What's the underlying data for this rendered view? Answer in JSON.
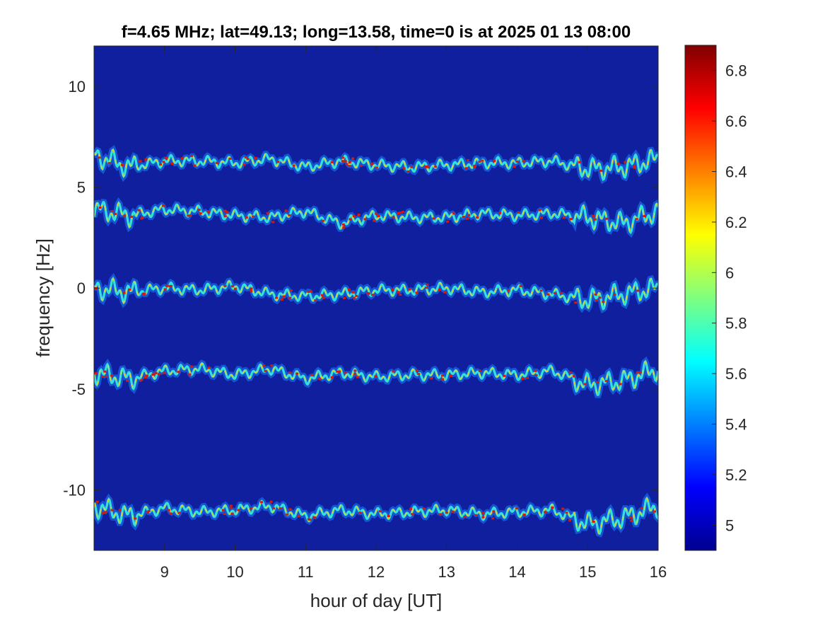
{
  "chart_data": {
    "type": "heatmap",
    "title": "f=4.65 MHz;  lat=49.13; long=13.58, time=0 is at 2025 01 13 08:00",
    "xlabel": "hour of day [UT]",
    "ylabel": "frequency [Hz]",
    "xlim": [
      8,
      16
    ],
    "ylim": [
      -13,
      12
    ],
    "x_ticks": [
      9,
      10,
      11,
      12,
      13,
      14,
      15,
      16
    ],
    "x_tick_labels": [
      "9",
      "10",
      "11",
      "12",
      "13",
      "14",
      "15",
      "16"
    ],
    "y_ticks": [
      10,
      5,
      0,
      -5,
      -10
    ],
    "y_tick_labels": [
      "10",
      "5",
      "0",
      "-5",
      "-10"
    ],
    "background_value": 4.9,
    "colormap": "jet",
    "colorbar": {
      "range": [
        4.9,
        6.9
      ],
      "ticks": [
        6.8,
        6.6,
        6.4,
        6.2,
        6,
        5.8,
        5.6,
        5.4,
        5.2,
        5
      ],
      "tick_labels": [
        "6.8",
        "6.6",
        "6.4",
        "6.2",
        "6",
        "5.8",
        "5.6",
        "5.4",
        "5.2",
        "5"
      ]
    },
    "series": [
      {
        "center_hz": 6.2,
        "points": [
          [
            8.0,
            6.6
          ],
          [
            8.5,
            6.0
          ],
          [
            9.0,
            6.3
          ],
          [
            9.5,
            6.3
          ],
          [
            10.0,
            6.2
          ],
          [
            10.5,
            6.4
          ],
          [
            11.0,
            6.0
          ],
          [
            11.5,
            6.3
          ],
          [
            12.0,
            6.1
          ],
          [
            12.5,
            6.0
          ],
          [
            13.0,
            6.1
          ],
          [
            13.5,
            6.2
          ],
          [
            14.0,
            6.2
          ],
          [
            14.5,
            6.3
          ],
          [
            15.0,
            5.9
          ],
          [
            15.5,
            6.0
          ],
          [
            16.0,
            6.4
          ]
        ]
      },
      {
        "center_hz": 3.8,
        "points": [
          [
            8.0,
            3.9
          ],
          [
            8.5,
            3.6
          ],
          [
            9.0,
            3.9
          ],
          [
            9.5,
            3.8
          ],
          [
            10.0,
            3.6
          ],
          [
            10.5,
            3.5
          ],
          [
            11.0,
            3.8
          ],
          [
            11.5,
            3.2
          ],
          [
            12.0,
            3.6
          ],
          [
            12.5,
            3.5
          ],
          [
            13.0,
            3.5
          ],
          [
            13.5,
            3.7
          ],
          [
            14.0,
            3.6
          ],
          [
            14.5,
            3.7
          ],
          [
            15.0,
            3.5
          ],
          [
            15.5,
            3.2
          ],
          [
            16.0,
            3.8
          ]
        ]
      },
      {
        "center_hz": -0.1,
        "points": [
          [
            8.0,
            0.0
          ],
          [
            8.5,
            -0.2
          ],
          [
            9.0,
            0.0
          ],
          [
            9.5,
            -0.1
          ],
          [
            10.0,
            0.1
          ],
          [
            10.5,
            -0.3
          ],
          [
            11.0,
            -0.4
          ],
          [
            11.5,
            -0.3
          ],
          [
            12.0,
            -0.1
          ],
          [
            12.5,
            -0.1
          ],
          [
            13.0,
            0.0
          ],
          [
            13.5,
            -0.2
          ],
          [
            14.0,
            -0.1
          ],
          [
            14.5,
            -0.3
          ],
          [
            15.0,
            -0.6
          ],
          [
            15.5,
            -0.3
          ],
          [
            16.0,
            0.0
          ]
        ]
      },
      {
        "center_hz": -4.1,
        "points": [
          [
            8.0,
            -4.2
          ],
          [
            8.5,
            -4.5
          ],
          [
            9.0,
            -4.1
          ],
          [
            9.5,
            -4.0
          ],
          [
            10.0,
            -4.3
          ],
          [
            10.5,
            -4.0
          ],
          [
            11.0,
            -4.5
          ],
          [
            11.5,
            -4.2
          ],
          [
            12.0,
            -4.4
          ],
          [
            12.5,
            -4.3
          ],
          [
            13.0,
            -4.3
          ],
          [
            13.5,
            -4.2
          ],
          [
            14.0,
            -4.3
          ],
          [
            14.5,
            -4.1
          ],
          [
            15.0,
            -4.8
          ],
          [
            15.5,
            -4.6
          ],
          [
            16.0,
            -4.0
          ]
        ]
      },
      {
        "center_hz": -11.0,
        "points": [
          [
            8.0,
            -10.8
          ],
          [
            8.5,
            -11.3
          ],
          [
            9.0,
            -10.9
          ],
          [
            9.5,
            -11.1
          ],
          [
            10.0,
            -11.0
          ],
          [
            10.5,
            -10.8
          ],
          [
            11.0,
            -11.3
          ],
          [
            11.5,
            -11.0
          ],
          [
            12.0,
            -11.2
          ],
          [
            12.5,
            -11.1
          ],
          [
            13.0,
            -11.0
          ],
          [
            13.5,
            -11.2
          ],
          [
            14.0,
            -11.1
          ],
          [
            14.5,
            -11.0
          ],
          [
            15.0,
            -11.7
          ],
          [
            15.5,
            -11.4
          ],
          [
            16.0,
            -10.8
          ]
        ]
      }
    ]
  }
}
